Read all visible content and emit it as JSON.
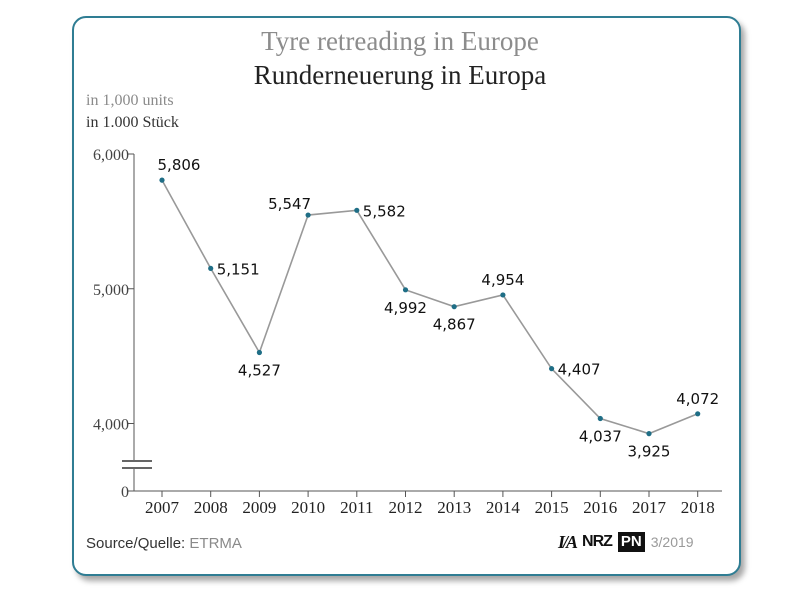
{
  "title_en": "Tyre retreading in Europe",
  "title_de": "Runderneuerung in Europa",
  "unit_en": "in 1,000 units",
  "unit_de": "in 1.000 Stück",
  "source_label": "Source/Quelle:",
  "source_value": "ETRMA",
  "logos": {
    "ia": "I/A",
    "nrz": "NRZ",
    "pn": "PN"
  },
  "issue": "3/2019",
  "colors": {
    "frame": "#2f7d93",
    "line": "#999999",
    "marker": "#1f6e86",
    "axis": "#555555"
  },
  "chart_data": {
    "type": "line",
    "title": "Tyre retreading in Europe / Runderneuerung in Europa",
    "ylabel": "in 1,000 units / in 1.000 Stück",
    "xlabel": "",
    "y_axis_break": true,
    "ylim": [
      0,
      6000
    ],
    "yticks": [
      0,
      4000,
      5000,
      6000
    ],
    "ytick_labels": [
      "0",
      "4,000",
      "5,000",
      "6,000"
    ],
    "categories": [
      "2007",
      "2008",
      "2009",
      "2010",
      "2011",
      "2012",
      "2013",
      "2014",
      "2015",
      "2016",
      "2017",
      "2018"
    ],
    "values": [
      5806,
      5151,
      4527,
      5547,
      5582,
      4992,
      4867,
      4954,
      4407,
      4037,
      3925,
      4072
    ],
    "data_labels": [
      "5,806",
      "5,151",
      "4,527",
      "5,547",
      "5,582",
      "4,992",
      "4,867",
      "4,954",
      "4,407",
      "4,037",
      "3,925",
      "4,072"
    ],
    "grid": false,
    "legend": "none"
  }
}
